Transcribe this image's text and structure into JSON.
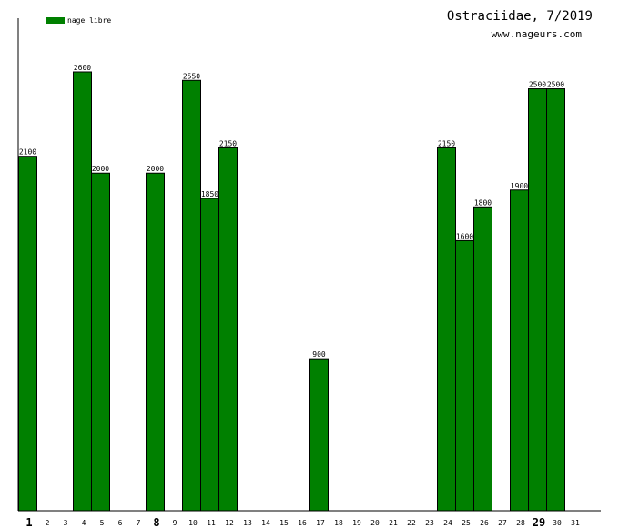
{
  "header": {
    "title": "Ostraciidae, 7/2019",
    "subtitle": "www.nageurs.com"
  },
  "legend": {
    "label": "nage libre",
    "color": "#008000"
  },
  "chart_data": {
    "type": "bar",
    "title": "Ostraciidae, 7/2019",
    "subtitle": "www.nageurs.com",
    "xlabel": "",
    "ylabel": "",
    "ylim": [
      0,
      2900
    ],
    "grid": false,
    "legend_position": "top-left",
    "bar_color": "#008000",
    "categories": [
      "1",
      "2",
      "3",
      "4",
      "5",
      "6",
      "7",
      "8",
      "9",
      "10",
      "11",
      "12",
      "13",
      "14",
      "15",
      "16",
      "17",
      "18",
      "19",
      "20",
      "21",
      "22",
      "23",
      "24",
      "25",
      "26",
      "27",
      "28",
      "29",
      "30",
      "31"
    ],
    "bold_categories": [
      "1",
      "8",
      "29"
    ],
    "series": [
      {
        "name": "nage libre",
        "values": [
          2100,
          null,
          null,
          2600,
          2000,
          null,
          null,
          2000,
          null,
          2550,
          1850,
          2150,
          null,
          null,
          null,
          null,
          900,
          null,
          null,
          null,
          null,
          null,
          null,
          2150,
          1600,
          1800,
          null,
          1900,
          2500,
          2500,
          null
        ]
      }
    ]
  }
}
